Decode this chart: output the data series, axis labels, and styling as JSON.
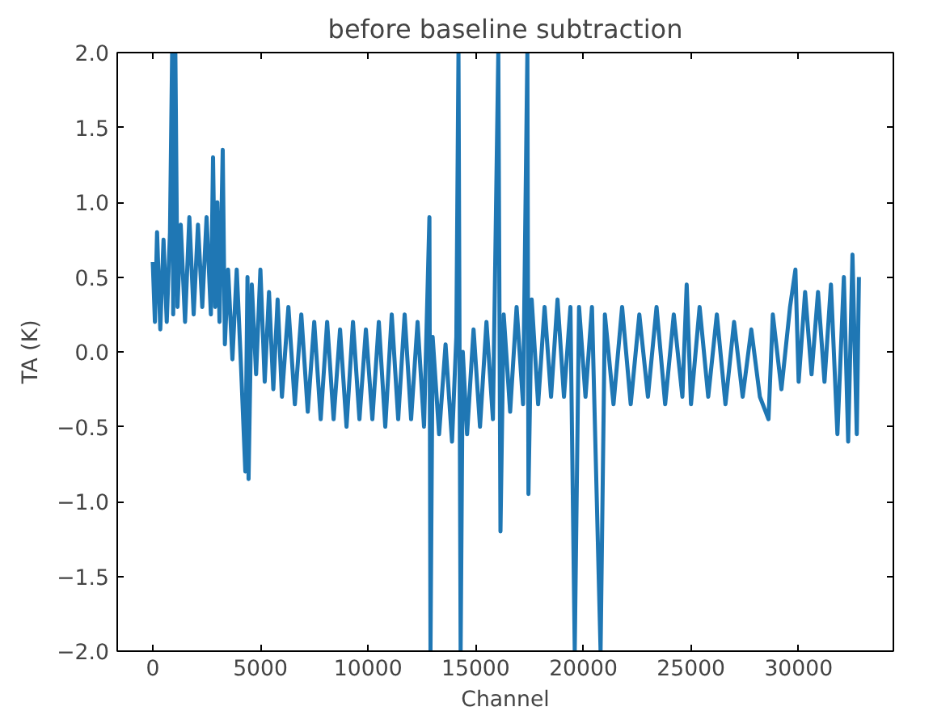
{
  "chart_data": {
    "type": "line",
    "title": "before baseline subtraction",
    "xlabel": "Channel",
    "ylabel": "TA (K)",
    "xlim": [
      -1650,
      34400
    ],
    "ylim": [
      -2.0,
      2.0
    ],
    "xticks": [
      0,
      5000,
      10000,
      15000,
      20000,
      25000,
      30000
    ],
    "yticks": [
      {
        "value": -2.0,
        "label": "−2.0"
      },
      {
        "value": -1.5,
        "label": "−1.5"
      },
      {
        "value": -1.0,
        "label": "−1.0"
      },
      {
        "value": -0.5,
        "label": "−0.5"
      },
      {
        "value": 0.0,
        "label": "0.0"
      },
      {
        "value": 0.5,
        "label": "0.5"
      },
      {
        "value": 1.0,
        "label": "1.0"
      },
      {
        "value": 1.5,
        "label": "1.5"
      },
      {
        "value": 2.0,
        "label": "2.0"
      }
    ],
    "grid": false,
    "marker": "none",
    "line_style": "solid",
    "series": [
      {
        "color": "#1f77b4",
        "x": [
          0,
          100,
          200,
          350,
          500,
          650,
          800,
          900,
          950,
          1050,
          1150,
          1300,
          1500,
          1700,
          1900,
          2100,
          2300,
          2500,
          2700,
          2800,
          2900,
          3000,
          3100,
          3250,
          3350,
          3500,
          3700,
          3900,
          4100,
          4300,
          4400,
          4450,
          4600,
          4800,
          5000,
          5200,
          5400,
          5600,
          5800,
          6000,
          6300,
          6600,
          6900,
          7200,
          7500,
          7800,
          8100,
          8400,
          8700,
          9000,
          9300,
          9600,
          9900,
          10200,
          10500,
          10800,
          11100,
          11400,
          11700,
          12000,
          12300,
          12600,
          12850,
          12900,
          13000,
          13300,
          13600,
          13900,
          14100,
          14200,
          14300,
          14400,
          14600,
          14900,
          15200,
          15500,
          15800,
          16050,
          16150,
          16300,
          16600,
          16900,
          17200,
          17400,
          17450,
          17600,
          17900,
          18200,
          18500,
          18800,
          19100,
          19400,
          19600,
          19800,
          20100,
          20400,
          20800,
          21000,
          21400,
          21800,
          22200,
          22600,
          23000,
          23400,
          23800,
          24200,
          24600,
          24800,
          25000,
          25400,
          25800,
          26200,
          26600,
          27000,
          27400,
          27800,
          28200,
          28600,
          28800,
          29200,
          29600,
          29850,
          30000,
          30300,
          30600,
          30900,
          31200,
          31500,
          31800,
          32100,
          32300,
          32500,
          32700,
          32800
        ],
        "values": [
          0.6,
          0.2,
          0.8,
          0.15,
          0.75,
          0.2,
          0.8,
          2.0,
          0.25,
          2.0,
          0.3,
          0.85,
          0.2,
          0.9,
          0.25,
          0.85,
          0.3,
          0.9,
          0.25,
          1.3,
          0.3,
          1.0,
          0.2,
          1.35,
          0.05,
          0.55,
          -0.05,
          0.55,
          -0.1,
          -0.8,
          0.5,
          -0.85,
          0.45,
          -0.15,
          0.55,
          -0.2,
          0.4,
          -0.25,
          0.35,
          -0.3,
          0.3,
          -0.35,
          0.25,
          -0.4,
          0.2,
          -0.45,
          0.2,
          -0.45,
          0.15,
          -0.5,
          0.2,
          -0.45,
          0.15,
          -0.45,
          0.2,
          -0.5,
          0.25,
          -0.45,
          0.25,
          -0.45,
          0.2,
          -0.5,
          0.9,
          -2.0,
          0.1,
          -0.55,
          0.05,
          -0.6,
          0.1,
          2.0,
          -2.0,
          0.0,
          -0.55,
          0.15,
          -0.5,
          0.2,
          -0.45,
          2.0,
          -1.2,
          0.25,
          -0.4,
          0.3,
          -0.35,
          2.0,
          -0.95,
          0.35,
          -0.35,
          0.3,
          -0.3,
          0.35,
          -0.3,
          0.3,
          -2.0,
          0.3,
          -0.3,
          0.3,
          -2.0,
          0.25,
          -0.35,
          0.3,
          -0.35,
          0.25,
          -0.3,
          0.3,
          -0.35,
          0.25,
          -0.3,
          0.45,
          -0.35,
          0.3,
          -0.3,
          0.25,
          -0.35,
          0.2,
          -0.3,
          0.15,
          -0.3,
          -0.45,
          0.25,
          -0.25,
          0.3,
          0.55,
          -0.2,
          0.4,
          -0.15,
          0.4,
          -0.2,
          0.45,
          -0.55,
          0.5,
          -0.6,
          0.65,
          -0.55,
          0.5
        ]
      }
    ]
  }
}
